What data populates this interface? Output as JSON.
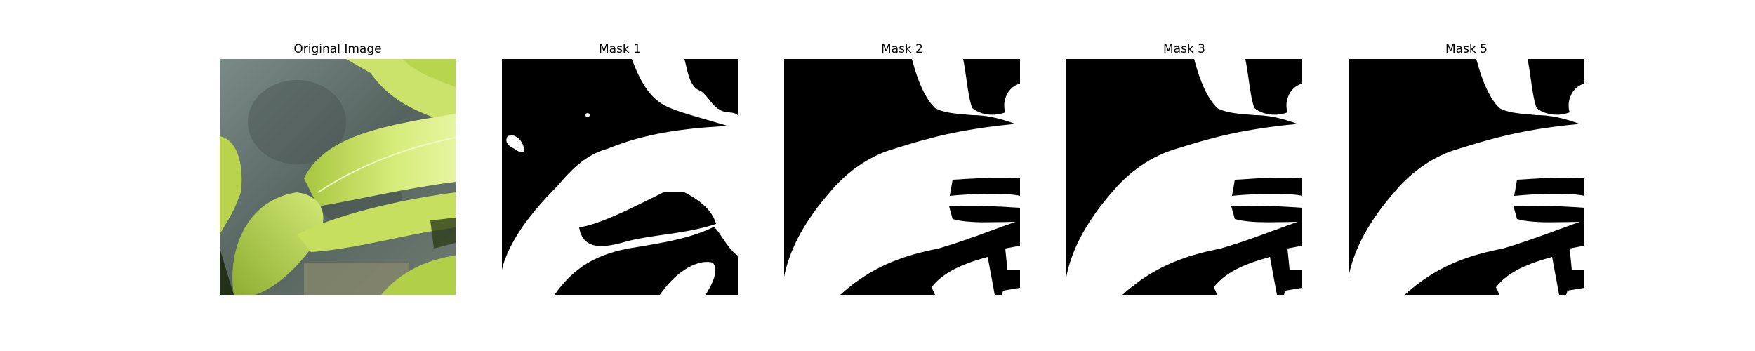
{
  "figure": {
    "panels": [
      {
        "title": "Original Image",
        "kind": "photo"
      },
      {
        "title": "Mask 1",
        "kind": "mask"
      },
      {
        "title": "Mask 2",
        "kind": "mask"
      },
      {
        "title": "Mask 3",
        "kind": "mask"
      },
      {
        "title": "Mask 5",
        "kind": "mask"
      }
    ]
  },
  "colors": {
    "mask_background": "#000000",
    "mask_foreground": "#ffffff",
    "leaf_light": "#d6ec7a",
    "leaf_mid": "#b4d24a",
    "leaf_dark": "#7c9a2a",
    "wall": "#5f6a66"
  }
}
